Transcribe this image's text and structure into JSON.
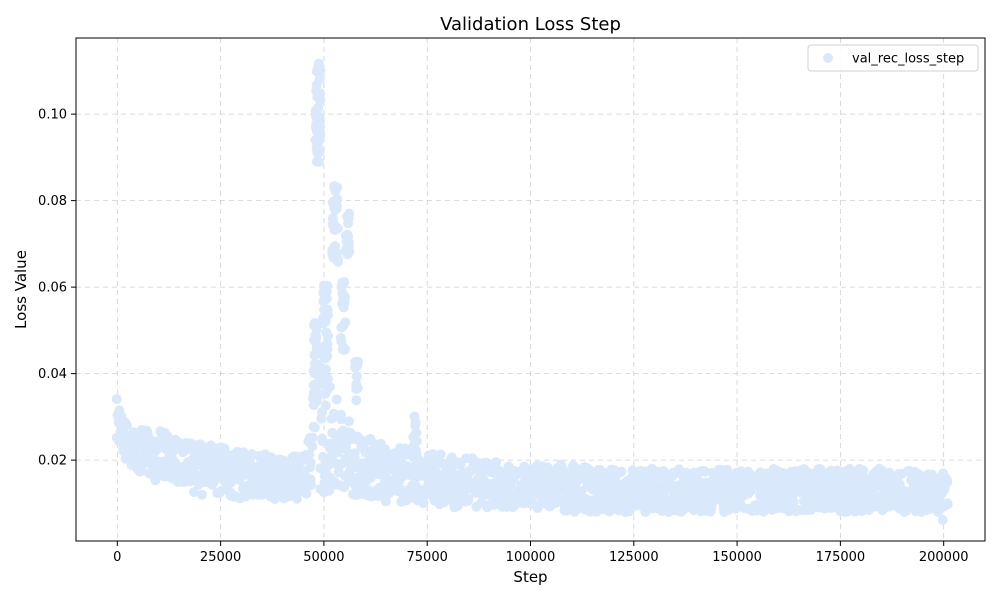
{
  "chart_data": {
    "type": "scatter",
    "title": "Validation Loss Step",
    "xlabel": "Step",
    "ylabel": "Loss Value",
    "xlim": [
      -10000,
      210000
    ],
    "ylim": [
      0.0013,
      0.1176
    ],
    "xticks": [
      0,
      25000,
      50000,
      75000,
      100000,
      125000,
      150000,
      175000,
      200000
    ],
    "yticks": [
      0.02,
      0.04,
      0.06,
      0.08,
      0.1
    ],
    "xtick_labels": [
      "0",
      "25000",
      "50000",
      "75000",
      "100000",
      "125000",
      "150000",
      "175000",
      "200000"
    ],
    "ytick_labels": [
      "0.02",
      "0.04",
      "0.06",
      "0.08",
      "0.10"
    ],
    "grid": true,
    "legend_position": "top-right",
    "point_color": "#dae8fc",
    "series": [
      {
        "name": "val_rec_loss_step",
        "band": {
          "x": [
            0,
            1000,
            3000,
            6000,
            10000,
            15000,
            20000,
            25000,
            30000,
            35000,
            40000,
            45000,
            47000,
            48000,
            49000,
            50000,
            51000,
            52000,
            53000,
            54000,
            55000,
            56000,
            57000,
            58000,
            59000,
            62000,
            65000,
            70000,
            72000,
            75000,
            80000,
            90000,
            100000,
            110000,
            120000,
            130000,
            140000,
            150000,
            160000,
            170000,
            180000,
            190000,
            200000
          ],
          "low": [
            0.025,
            0.022,
            0.018,
            0.016,
            0.015,
            0.013,
            0.012,
            0.012,
            0.011,
            0.011,
            0.011,
            0.011,
            0.013,
            0.03,
            0.012,
            0.012,
            0.012,
            0.013,
            0.013,
            0.014,
            0.013,
            0.012,
            0.011,
            0.011,
            0.011,
            0.011,
            0.01,
            0.01,
            0.01,
            0.01,
            0.009,
            0.009,
            0.009,
            0.008,
            0.008,
            0.008,
            0.008,
            0.008,
            0.008,
            0.008,
            0.008,
            0.008,
            0.008
          ],
          "high": [
            0.035,
            0.03,
            0.028,
            0.027,
            0.027,
            0.025,
            0.024,
            0.023,
            0.022,
            0.022,
            0.021,
            0.021,
            0.028,
            0.05,
            0.045,
            0.04,
            0.04,
            0.038,
            0.035,
            0.033,
            0.032,
            0.03,
            0.028,
            0.026,
            0.025,
            0.025,
            0.023,
            0.023,
            0.023,
            0.022,
            0.021,
            0.02,
            0.019,
            0.019,
            0.018,
            0.018,
            0.018,
            0.018,
            0.018,
            0.018,
            0.018,
            0.018,
            0.017
          ]
        },
        "clusters": [
          {
            "x": [
              47800,
              49200
            ],
            "y": [
              0.086,
              0.112
            ]
          },
          {
            "x": [
              47500,
              48500
            ],
            "y": [
              0.035,
              0.052
            ]
          },
          {
            "x": [
              49800,
              51000
            ],
            "y": [
              0.04,
              0.063
            ]
          },
          {
            "x": [
              52000,
              53500
            ],
            "y": [
              0.065,
              0.084
            ]
          },
          {
            "x": [
              54000,
              55200
            ],
            "y": [
              0.045,
              0.062
            ]
          },
          {
            "x": [
              55300,
              56200
            ],
            "y": [
              0.064,
              0.077
            ]
          },
          {
            "x": [
              57500,
              58500
            ],
            "y": [
              0.033,
              0.043
            ]
          },
          {
            "x": [
              71500,
              72500
            ],
            "y": [
              0.02,
              0.031
            ]
          },
          {
            "x": [
              199000,
              201000
            ],
            "y": [
              0.006,
              0.016
            ]
          }
        ]
      }
    ]
  }
}
